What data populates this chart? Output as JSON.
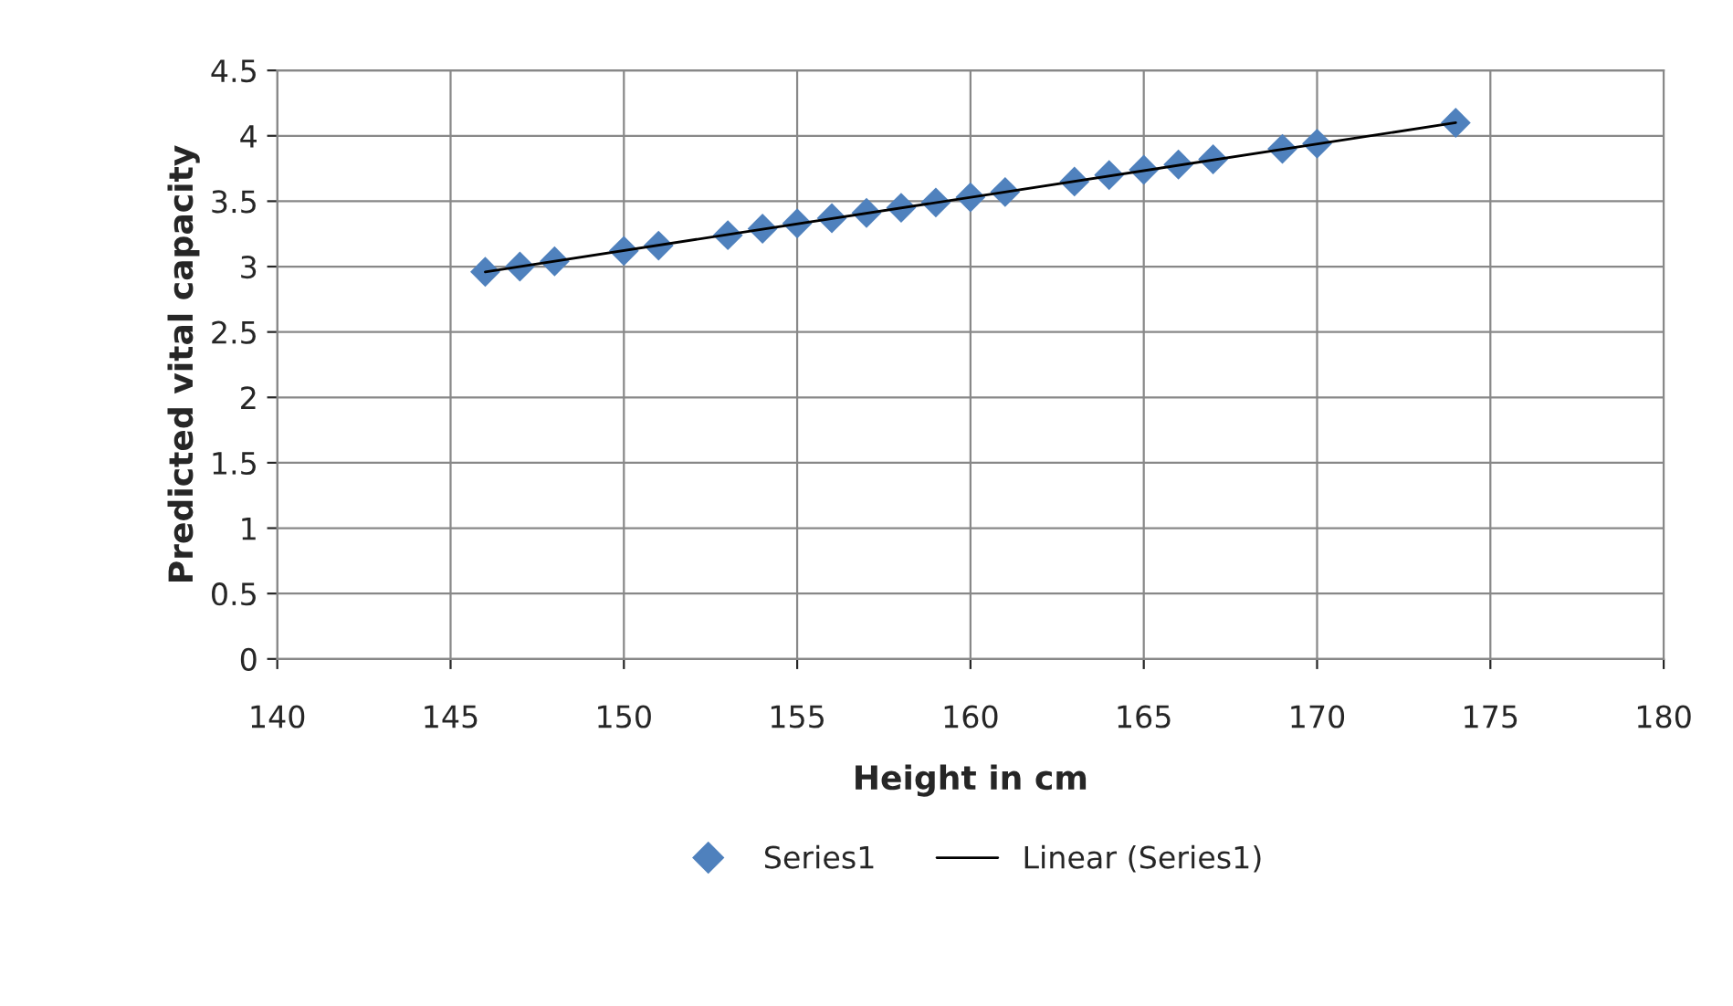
{
  "chart_data": {
    "type": "scatter",
    "xlabel": "Height in cm",
    "ylabel": "Predicted vital capacity",
    "xlim": [
      140,
      180
    ],
    "xticks": [
      140,
      145,
      150,
      155,
      160,
      165,
      170,
      175,
      180
    ],
    "ylim": [
      0,
      4.5
    ],
    "yticks": [
      0,
      0.5,
      1,
      1.5,
      2,
      2.5,
      3,
      3.5,
      4,
      4.5
    ],
    "grid": true,
    "legend": "bottom",
    "series": [
      {
        "name": "Series1",
        "marker": "diamond",
        "color": "#4f81bd",
        "x": [
          146,
          147,
          148,
          150,
          151,
          153,
          154,
          155,
          156,
          157,
          158,
          159,
          160,
          161,
          163,
          164,
          165,
          166,
          167,
          169,
          170,
          174
        ],
        "values": [
          2.96,
          3.0,
          3.04,
          3.12,
          3.16,
          3.24,
          3.29,
          3.33,
          3.37,
          3.41,
          3.45,
          3.49,
          3.53,
          3.57,
          3.65,
          3.7,
          3.74,
          3.78,
          3.82,
          3.9,
          3.94,
          4.1
        ]
      },
      {
        "name": "Linear (Series1)",
        "type": "line",
        "marker": "none",
        "color": "#000000",
        "x": [
          146,
          174
        ],
        "values": [
          2.96,
          4.1
        ]
      }
    ]
  }
}
